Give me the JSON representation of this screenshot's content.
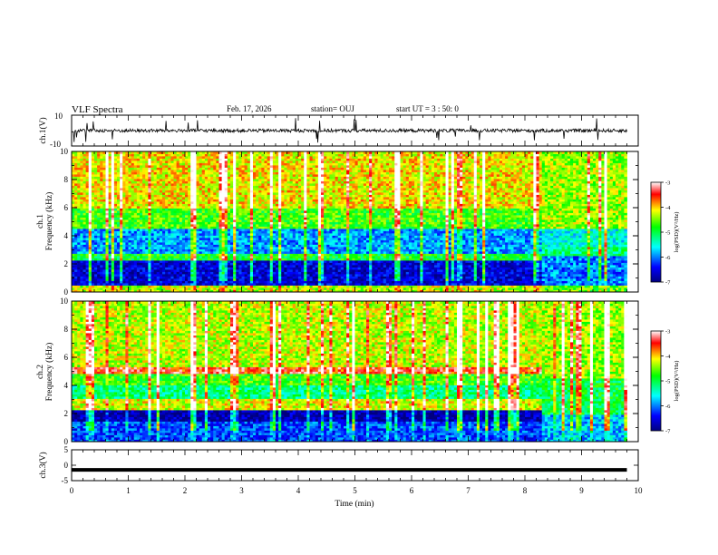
{
  "header": {
    "title": "VLF Spectra",
    "date": "Feb. 17, 2026",
    "station": "station= OUJ",
    "start": "start  UT =   3 : 50: 0"
  },
  "chart_data": [
    {
      "type": "line",
      "panel": "ch1-waveform",
      "ylabel": "ch.1(V)",
      "ylim": [
        -10,
        10
      ],
      "yticks": [
        "10",
        "-10"
      ],
      "xlim": [
        0,
        10
      ],
      "baseline_value": 0,
      "color": "#000000"
    },
    {
      "type": "heatmap",
      "panel": "ch1-spectrogram",
      "ylabel_top": "ch.1",
      "ylabel": "Frequency (kHz)",
      "ylim": [
        0,
        10
      ],
      "yticks": [
        "0",
        "2",
        "4",
        "6",
        "8",
        "10"
      ],
      "xlim": [
        0,
        9.8
      ],
      "colorbar": {
        "label": "log(PSD)(V²/Hz)",
        "ticks": [
          "-3",
          "-4",
          "-5",
          "-6",
          "-7"
        ],
        "range": [
          -7,
          -3
        ]
      },
      "bands_before_change": [
        {
          "freq_khz": [
            0,
            0.5
          ],
          "level": -4.3
        },
        {
          "freq_khz": [
            0.5,
            2.2
          ],
          "level": -6.6
        },
        {
          "freq_khz": [
            2.2,
            2.8
          ],
          "level": -4.9
        },
        {
          "freq_khz": [
            2.8,
            4.5
          ],
          "level": -5.9
        },
        {
          "freq_khz": [
            4.5,
            6.0
          ],
          "level": -4.7
        },
        {
          "freq_khz": [
            6.0,
            10
          ],
          "level": -4.1
        }
      ],
      "change_time_min": 8.3,
      "bands_after_change": [
        {
          "freq_khz": [
            0,
            0.5
          ],
          "level": -4.6
        },
        {
          "freq_khz": [
            0.5,
            2.6
          ],
          "level": -6.0
        },
        {
          "freq_khz": [
            2.6,
            3.2
          ],
          "level": -5.2
        },
        {
          "freq_khz": [
            3.2,
            4.5
          ],
          "level": -5.5
        },
        {
          "freq_khz": [
            4.5,
            10
          ],
          "level": -4.4
        }
      ]
    },
    {
      "type": "heatmap",
      "panel": "ch2-spectrogram",
      "ylabel_top": "ch.2",
      "ylabel": "Frequency (kHz)",
      "ylim": [
        0,
        10
      ],
      "yticks": [
        "0",
        "2",
        "4",
        "6",
        "8",
        "10"
      ],
      "xlim": [
        0,
        9.8
      ],
      "colorbar": {
        "label": "log(PSD)(V²/Hz)",
        "ticks": [
          "-3",
          "-4",
          "-5",
          "-6",
          "-7"
        ],
        "range": [
          -7,
          -3
        ]
      },
      "bands_before_change": [
        {
          "freq_khz": [
            0,
            1.5
          ],
          "level": -6.2
        },
        {
          "freq_khz": [
            1.5,
            2.2
          ],
          "level": -6.8
        },
        {
          "freq_khz": [
            2.2,
            3.0
          ],
          "level": -4.2
        },
        {
          "freq_khz": [
            3.0,
            4.0
          ],
          "level": -5.2
        },
        {
          "freq_khz": [
            4.0,
            4.8
          ],
          "level": -4.7
        },
        {
          "freq_khz": [
            4.8,
            5.4
          ],
          "level": -3.5
        },
        {
          "freq_khz": [
            5.4,
            10
          ],
          "level": -4.3
        }
      ],
      "change_time_min": 8.3,
      "bands_after_change": [
        {
          "freq_khz": [
            0,
            2.0
          ],
          "level": -5.8
        },
        {
          "freq_khz": [
            2.0,
            4.5
          ],
          "level": -5.0
        },
        {
          "freq_khz": [
            4.5,
            10
          ],
          "level": -4.4
        }
      ]
    },
    {
      "type": "line",
      "panel": "ch3-waveform",
      "ylabel": "ch.3(V)",
      "xlabel": "Time (min)",
      "ylim": [
        -5,
        5
      ],
      "yticks": [
        "5",
        "0",
        "-5"
      ],
      "xlim": [
        0,
        10
      ],
      "xticks": [
        "0",
        "1",
        "2",
        "3",
        "4",
        "5",
        "6",
        "7",
        "8",
        "9",
        "10"
      ],
      "constant_value": -1.5,
      "color": "#000000"
    }
  ]
}
